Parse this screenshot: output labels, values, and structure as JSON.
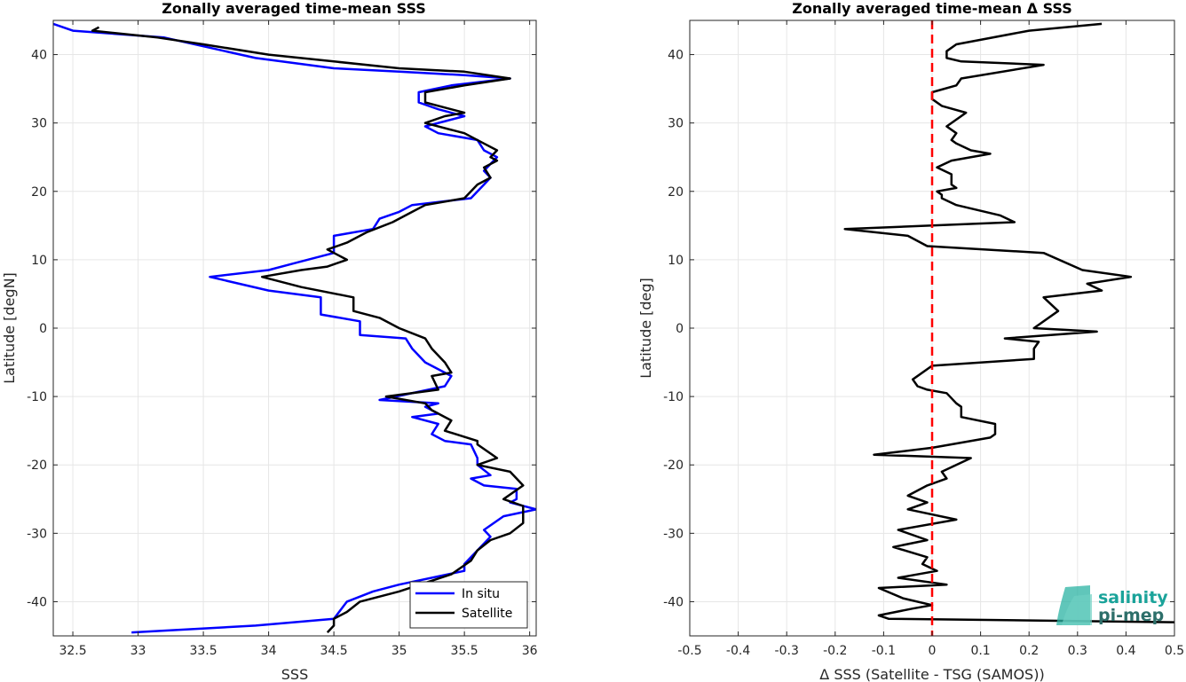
{
  "chart_data": [
    {
      "type": "line",
      "title": "Zonally averaged time-mean SSS",
      "xlabel": "SSS",
      "ylabel": "Latitude [degN]",
      "xlim": [
        32.35,
        36.05
      ],
      "ylim": [
        -45,
        45
      ],
      "xticks": [
        32.5,
        33,
        33.5,
        34,
        34.5,
        35,
        35.5,
        36
      ],
      "xtick_labels": [
        "32.5",
        "33",
        "33.5",
        "34",
        "34.5",
        "35",
        "35.5",
        "36"
      ],
      "yticks": [
        -40,
        -30,
        -20,
        -10,
        0,
        10,
        20,
        30,
        40
      ],
      "ytick_labels": [
        "-40",
        "-30",
        "-20",
        "-10",
        "0",
        "10",
        "20",
        "30",
        "40"
      ],
      "grid": true,
      "legend": "bottom-right",
      "series": [
        {
          "name": "In situ",
          "color": "#0000ff",
          "x": [
            32.35,
            32.5,
            33.2,
            33.9,
            34.5,
            35.0,
            35.5,
            35.85,
            35.4,
            35.15,
            35.15,
            35.3,
            35.5,
            35.2,
            35.3,
            35.6,
            35.65,
            35.75,
            35.7,
            35.65,
            35.7,
            35.65,
            35.55,
            35.1,
            35.0,
            34.85,
            34.8,
            34.5,
            34.5,
            34.2,
            34.0,
            33.55,
            34.0,
            34.4,
            34.4,
            34.7,
            34.7,
            35.05,
            35.1,
            35.2,
            35.4,
            35.35,
            34.85,
            35.3,
            35.2,
            35.3,
            35.1,
            35.3,
            35.25,
            35.35,
            35.55,
            35.6,
            35.6,
            35.7,
            35.55,
            35.65,
            35.9,
            35.9,
            35.85,
            36.05,
            35.8,
            35.65,
            35.7,
            35.65,
            35.5,
            35.5,
            35.0,
            34.8,
            34.6,
            34.5,
            33.9,
            32.95
          ],
          "y": [
            44.5,
            43.5,
            42.5,
            39.5,
            38.0,
            37.5,
            37.0,
            36.5,
            35.5,
            34.5,
            33.0,
            32.0,
            31.0,
            29.5,
            28.5,
            27.5,
            26.0,
            25.0,
            24.0,
            23.0,
            22.0,
            21.0,
            19.0,
            18.0,
            17.0,
            16.0,
            14.5,
            13.5,
            11.0,
            9.5,
            8.5,
            7.5,
            5.5,
            4.5,
            2.0,
            1.0,
            -1.0,
            -1.5,
            -3.0,
            -5.0,
            -7.0,
            -8.5,
            -10.5,
            -11.0,
            -11.5,
            -12.5,
            -13.0,
            -14.0,
            -15.5,
            -16.5,
            -17.0,
            -19.0,
            -20.0,
            -21.5,
            -22.0,
            -23.0,
            -23.5,
            -25.0,
            -25.5,
            -26.5,
            -27.5,
            -29.5,
            -30.5,
            -31.5,
            -34.5,
            -35.5,
            -37.5,
            -38.5,
            -40.0,
            -42.5,
            -43.5,
            -44.5
          ]
        },
        {
          "name": "Satellite",
          "color": "#000000",
          "x": [
            32.7,
            32.65,
            33.15,
            33.5,
            34.0,
            34.5,
            35.0,
            35.5,
            35.85,
            35.5,
            35.2,
            35.2,
            35.5,
            35.35,
            35.2,
            35.5,
            35.65,
            35.75,
            35.7,
            35.75,
            35.65,
            35.7,
            35.6,
            35.5,
            35.2,
            35.1,
            34.95,
            34.75,
            34.6,
            34.45,
            34.6,
            34.45,
            34.25,
            33.95,
            34.25,
            34.65,
            34.65,
            34.85,
            35.0,
            35.2,
            35.25,
            35.35,
            35.4,
            35.25,
            35.3,
            34.9,
            35.2,
            35.25,
            35.4,
            35.35,
            35.6,
            35.6,
            35.75,
            35.6,
            35.85,
            35.95,
            35.8,
            35.95,
            35.95,
            35.85,
            35.7,
            35.6,
            35.55,
            35.4,
            35.0,
            34.7,
            34.6,
            34.5,
            34.5,
            34.45
          ],
          "y": [
            44.0,
            43.5,
            42.5,
            41.5,
            40.0,
            39.0,
            38.0,
            37.5,
            36.5,
            35.5,
            34.5,
            33.0,
            31.5,
            31.0,
            30.0,
            28.5,
            27.0,
            26.0,
            25.0,
            24.5,
            23.5,
            22.0,
            21.0,
            19.0,
            18.0,
            17.0,
            15.5,
            14.0,
            12.5,
            11.5,
            10.0,
            9.0,
            8.5,
            7.5,
            6.0,
            4.5,
            2.5,
            1.5,
            0.0,
            -1.5,
            -3.0,
            -5.0,
            -6.5,
            -7.0,
            -9.0,
            -10.0,
            -11.0,
            -12.0,
            -13.5,
            -15.0,
            -16.5,
            -17.0,
            -19.0,
            -20.0,
            -21.0,
            -23.0,
            -25.0,
            -26.0,
            -28.5,
            -30.0,
            -31.0,
            -32.5,
            -34.0,
            -36.0,
            -38.5,
            -40.0,
            -41.5,
            -42.5,
            -43.5,
            -44.5
          ]
        }
      ]
    },
    {
      "type": "line",
      "title": "Zonally averaged time-mean Δ SSS",
      "xlabel": "Δ SSS (Satellite - TSG (SAMOS))",
      "ylabel": "Latitude [deg]",
      "xlim": [
        -0.5,
        0.5
      ],
      "ylim": [
        -45,
        45
      ],
      "xticks": [
        -0.5,
        -0.4,
        -0.3,
        -0.2,
        -0.1,
        0,
        0.1,
        0.2,
        0.3,
        0.4,
        0.5
      ],
      "xtick_labels": [
        "-0.5",
        "-0.4",
        "-0.3",
        "-0.2",
        "-0.1",
        "0",
        "0.1",
        "0.2",
        "0.3",
        "0.4",
        "0.5"
      ],
      "yticks": [
        -40,
        -30,
        -20,
        -10,
        0,
        10,
        20,
        30,
        40
      ],
      "ytick_labels": [
        "-40",
        "-30",
        "-20",
        "-10",
        "0",
        "10",
        "20",
        "30",
        "40"
      ],
      "grid": true,
      "reference_line": {
        "x": 0,
        "color": "#ff0000",
        "style": "dashed"
      },
      "series": [
        {
          "color": "#000000",
          "x": [
            0.35,
            0.2,
            0.05,
            0.03,
            0.03,
            0.06,
            0.23,
            0.06,
            0.05,
            0.0,
            0.0,
            0.02,
            0.07,
            0.03,
            0.05,
            0.04,
            0.05,
            0.08,
            0.12,
            0.04,
            0.01,
            0.04,
            0.04,
            0.05,
            0.01,
            0.02,
            0.02,
            0.05,
            0.14,
            0.17,
            -0.18,
            -0.05,
            -0.01,
            0.23,
            0.31,
            0.41,
            0.32,
            0.35,
            0.23,
            0.26,
            0.21,
            0.34,
            0.15,
            0.22,
            0.21,
            0.21,
            0.0,
            -0.04,
            -0.03,
            -0.01,
            0.03,
            0.05,
            0.06,
            0.06,
            0.13,
            0.13,
            0.12,
            0.0,
            -0.12,
            0.08,
            0.02,
            0.03,
            -0.01,
            -0.05,
            -0.01,
            -0.05,
            0.05,
            -0.07,
            -0.01,
            -0.08,
            -0.01,
            -0.02,
            0.01,
            -0.07,
            0.03,
            -0.11,
            -0.06,
            0.0,
            -0.04,
            -0.11,
            -0.09,
            0.5
          ],
          "y": [
            44.5,
            43.5,
            41.5,
            40.5,
            39.5,
            39.0,
            38.5,
            36.5,
            35.5,
            34.5,
            33.5,
            32.5,
            31.5,
            29.5,
            28.5,
            27.5,
            27.0,
            26.0,
            25.5,
            24.5,
            23.5,
            22.5,
            21.0,
            20.5,
            20.0,
            19.5,
            19.0,
            18.0,
            16.5,
            15.5,
            14.5,
            13.5,
            12.0,
            11.0,
            8.5,
            7.5,
            6.5,
            5.5,
            4.5,
            2.5,
            0.0,
            -0.5,
            -1.5,
            -2.0,
            -3.0,
            -4.5,
            -5.5,
            -7.5,
            -8.5,
            -9.0,
            -9.5,
            -11.0,
            -11.5,
            -13.0,
            -14.0,
            -15.5,
            -16.0,
            -17.5,
            -18.5,
            -19.0,
            -21.0,
            -22.0,
            -23.0,
            -24.5,
            -25.5,
            -26.5,
            -28.0,
            -29.5,
            -31.0,
            -32.0,
            -33.5,
            -34.5,
            -35.5,
            -36.5,
            -37.5,
            -38.0,
            -39.5,
            -40.5,
            -41.0,
            -42.0,
            -42.5,
            -43.0
          ]
        }
      ]
    }
  ],
  "legend": {
    "items": [
      {
        "label": "In situ",
        "color": "#0000ff"
      },
      {
        "label": "Satellite",
        "color": "#000000"
      }
    ]
  },
  "logo": {
    "line1": "salinity",
    "line2": "pi-mep",
    "color1": "#1aa39a",
    "color2": "#2d6f6a"
  }
}
